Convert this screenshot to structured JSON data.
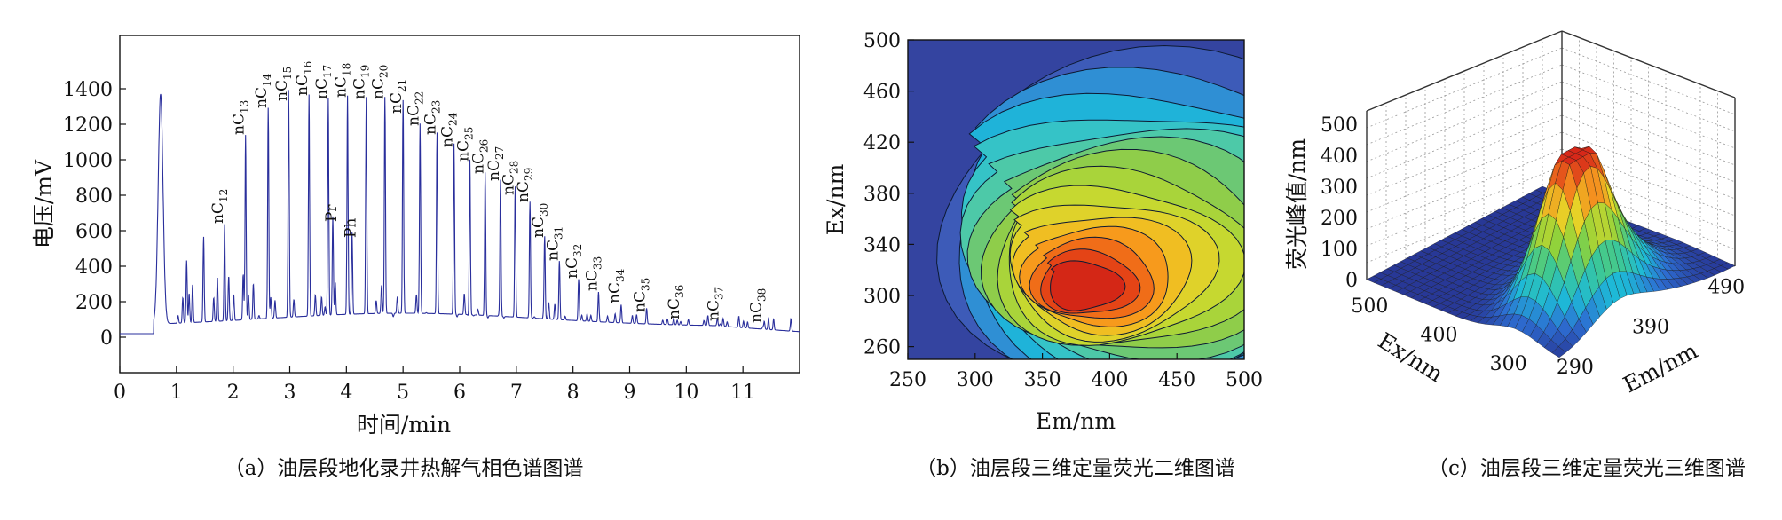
{
  "chart_data": [
    {
      "type": "line",
      "title": "",
      "caption": "（a）油层段地化录井热解气相色谱图谱",
      "xlabel": "时间/min",
      "ylabel": "电压/mV",
      "xlim": [
        0,
        12
      ],
      "ylim": [
        -200,
        1700
      ],
      "xticks": [
        0,
        1,
        2,
        3,
        4,
        5,
        6,
        7,
        8,
        9,
        10,
        11
      ],
      "yticks": [
        0,
        200,
        400,
        600,
        800,
        1000,
        1200,
        1400
      ],
      "baseline": 20,
      "peaks": [
        {
          "label": "",
          "x": 0.72,
          "y": 1340
        },
        {
          "label": "",
          "x": 1.18,
          "y": 400
        },
        {
          "label": "",
          "x": 1.48,
          "y": 470
        },
        {
          "label": "nC12",
          "x": 1.85,
          "y": 600
        },
        {
          "label": "nC13",
          "x": 2.22,
          "y": 1100
        },
        {
          "label": "nC14",
          "x": 2.62,
          "y": 1250
        },
        {
          "label": "nC15",
          "x": 2.98,
          "y": 1290
        },
        {
          "label": "nC16",
          "x": 3.34,
          "y": 1320
        },
        {
          "label": "nC17",
          "x": 3.68,
          "y": 1300
        },
        {
          "label": "Pr",
          "x": 3.76,
          "y": 630
        },
        {
          "label": "nC18",
          "x": 4.02,
          "y": 1310
        },
        {
          "label": "Ph",
          "x": 4.1,
          "y": 540
        },
        {
          "label": "nC19",
          "x": 4.35,
          "y": 1300
        },
        {
          "label": "nC20",
          "x": 4.68,
          "y": 1300
        },
        {
          "label": "nC21",
          "x": 5.0,
          "y": 1220
        },
        {
          "label": "nC22",
          "x": 5.3,
          "y": 1150
        },
        {
          "label": "nC23",
          "x": 5.6,
          "y": 1100
        },
        {
          "label": "nC24",
          "x": 5.9,
          "y": 1030
        },
        {
          "label": "nC25",
          "x": 6.18,
          "y": 950
        },
        {
          "label": "nC26",
          "x": 6.45,
          "y": 880
        },
        {
          "label": "nC27",
          "x": 6.72,
          "y": 840
        },
        {
          "label": "nC28",
          "x": 6.98,
          "y": 760
        },
        {
          "label": "nC29",
          "x": 7.24,
          "y": 720
        },
        {
          "label": "nC30",
          "x": 7.5,
          "y": 520
        },
        {
          "label": "nC31",
          "x": 7.76,
          "y": 390
        },
        {
          "label": "nC32",
          "x": 8.1,
          "y": 290
        },
        {
          "label": "nC33",
          "x": 8.45,
          "y": 220
        },
        {
          "label": "nC34",
          "x": 8.85,
          "y": 150
        },
        {
          "label": "nC35",
          "x": 9.3,
          "y": 100
        },
        {
          "label": "nC36",
          "x": 9.9,
          "y": 60
        },
        {
          "label": "nC37",
          "x": 10.6,
          "y": 50
        },
        {
          "label": "nC38",
          "x": 11.35,
          "y": 40
        }
      ]
    },
    {
      "type": "heatmap",
      "title": "",
      "caption": "（b）油层段三维定量荧光二维图谱",
      "xlabel": "Em/nm",
      "ylabel": "Ex/nm",
      "xlim": [
        250,
        500
      ],
      "ylim": [
        250,
        500
      ],
      "xticks": [
        250,
        300,
        350,
        400,
        450,
        500
      ],
      "yticks": [
        260,
        300,
        340,
        380,
        420,
        460,
        500
      ],
      "peak": {
        "em": 378,
        "ex": 306,
        "value": 470
      },
      "levels": 15
    },
    {
      "type": "surface",
      "title": "",
      "caption": "（c）油层段三维定量荧光三维图谱",
      "zlabel": "荧光峰值/nm",
      "xlabel": "Ex/nm",
      "ylabel": "Em/nm",
      "zticks": [
        0,
        100,
        200,
        300,
        400,
        500
      ],
      "xticks": [
        500,
        400,
        300
      ],
      "yticks": [
        290,
        390,
        490
      ],
      "peak": {
        "ex": 306,
        "em": 378,
        "value": 470
      }
    }
  ]
}
